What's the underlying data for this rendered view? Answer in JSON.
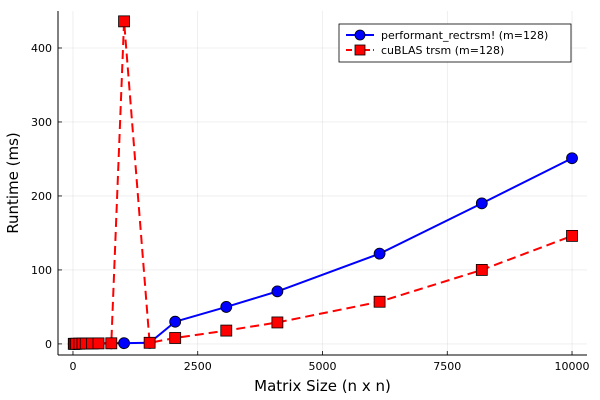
{
  "chart_data": {
    "type": "line",
    "title": "",
    "xlabel": "Matrix Size (n x n)",
    "ylabel": "Runtime (ms)",
    "xlim": [
      -300,
      10300
    ],
    "ylim": [
      -15,
      450
    ],
    "x_ticks": [
      0,
      2500,
      5000,
      7500,
      10000
    ],
    "y_ticks": [
      0,
      100,
      200,
      300,
      400
    ],
    "grid": true,
    "legend_position": "top-right",
    "series": [
      {
        "name": "performant_rectrsm! (m=128)",
        "color": "#0000ff",
        "line_style": "solid",
        "marker": "circle",
        "x": [
          16,
          32,
          64,
          128,
          192,
          256,
          384,
          512,
          768,
          1024,
          1536,
          2048,
          3072,
          4096,
          6144,
          8192,
          10000
        ],
        "y": [
          0.1,
          0.1,
          0.2,
          0.3,
          0.4,
          0.5,
          0.6,
          0.7,
          0.8,
          1,
          1.5,
          30,
          50,
          71,
          122,
          190,
          251
        ]
      },
      {
        "name": "cuBLAS trsm (m=128)",
        "color": "#ff0000",
        "line_style": "dashed",
        "marker": "square",
        "x": [
          16,
          32,
          64,
          128,
          192,
          256,
          384,
          512,
          768,
          1024,
          1536,
          2048,
          3072,
          4096,
          6144,
          8192,
          10000
        ],
        "y": [
          0.1,
          0.1,
          0.2,
          0.3,
          0.4,
          0.5,
          0.6,
          0.7,
          0.8,
          436,
          1.5,
          8,
          18,
          29,
          57,
          100,
          146
        ]
      }
    ]
  }
}
